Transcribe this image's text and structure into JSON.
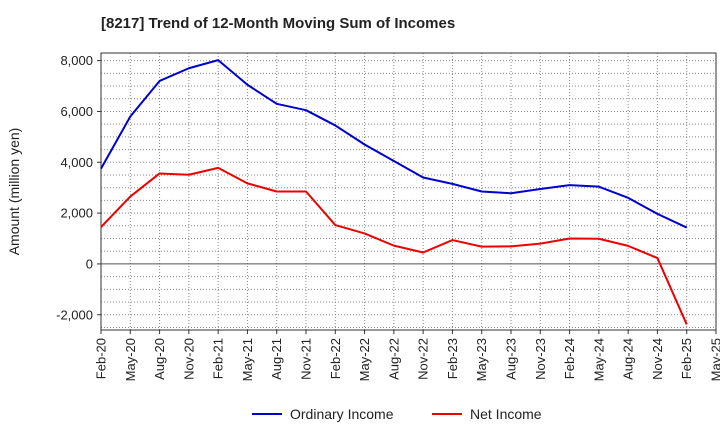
{
  "chart_data": {
    "type": "line",
    "title": "[8217]  Trend of 12-Month Moving Sum of Incomes",
    "ylabel": "Amount (million yen)",
    "xlabel": "",
    "x": [
      "Feb-20",
      "May-20",
      "Aug-20",
      "Nov-20",
      "Feb-21",
      "May-21",
      "Aug-21",
      "Nov-21",
      "Feb-22",
      "May-22",
      "Aug-22",
      "Nov-22",
      "Feb-23",
      "May-23",
      "Aug-23",
      "Nov-23",
      "Feb-24",
      "May-24",
      "Aug-24",
      "Nov-24",
      "Feb-25",
      "May-25"
    ],
    "ylim": [
      -2600,
      8300
    ],
    "yticks": [
      -2000,
      0,
      2000,
      4000,
      6000,
      8000
    ],
    "ytick_labels": [
      "-2,000",
      "0",
      "2,000",
      "4,000",
      "6,000",
      "8,000"
    ],
    "grid": true,
    "legend_position": "bottom",
    "series": [
      {
        "name": "Ordinary Income",
        "color": "#0000cc",
        "values": [
          3750,
          5800,
          7200,
          7700,
          8020,
          7050,
          6300,
          6050,
          5450,
          4700,
          4050,
          3400,
          3150,
          2850,
          2780,
          2950,
          3100,
          3040,
          2600,
          1970,
          1430,
          null
        ]
      },
      {
        "name": "Net Income",
        "color": "#ee0000",
        "values": [
          1450,
          2650,
          3560,
          3510,
          3780,
          3170,
          2850,
          2850,
          1530,
          1200,
          720,
          450,
          940,
          680,
          690,
          800,
          1000,
          990,
          710,
          230,
          -2380,
          null
        ]
      }
    ]
  }
}
